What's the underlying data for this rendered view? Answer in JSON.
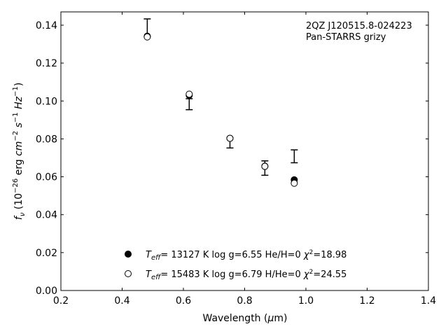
{
  "chart_data": {
    "type": "scatter",
    "title": "",
    "xlabel": "Wavelength (μm)",
    "ylabel": "f_ν (10^-26 erg cm^-2 s^-1 Hz^-1)",
    "xlim": [
      0.2,
      1.4
    ],
    "ylim": [
      0.0,
      0.147
    ],
    "xticks": [
      0.2,
      0.4,
      0.6,
      0.8,
      1.0,
      1.2,
      1.4
    ],
    "xtick_labels": [
      "0.2",
      "0.4",
      "0.6",
      "0.8",
      "1.0",
      "1.2",
      "1.4"
    ],
    "yticks": [
      0.0,
      0.02,
      0.04,
      0.06,
      0.08,
      0.1,
      0.12,
      0.14
    ],
    "ytick_labels": [
      "0.00",
      "0.02",
      "0.04",
      "0.06",
      "0.08",
      "0.10",
      "0.12",
      "0.14"
    ],
    "grid": false,
    "annotation": [
      "2QZ J120515.8-024223",
      "Pan-STARRS grizy"
    ],
    "observed": {
      "x": [
        0.482,
        0.619,
        0.752,
        0.866,
        0.962
      ],
      "y_high": [
        0.1433,
        0.1012,
        0.0806,
        0.0684,
        0.0742
      ],
      "y_low": [
        0.1338,
        0.0954,
        0.0752,
        0.0608,
        0.0674
      ]
    },
    "series": [
      {
        "legend": "T_eff= 13127 K  log g=6.55  He/H=0  χ²=18.98",
        "marker": "filled-circle",
        "x": [
          0.482,
          0.619,
          0.752,
          0.866,
          0.962
        ],
        "y": [
          0.1342,
          0.103,
          0.0803,
          0.0656,
          0.0584
        ]
      },
      {
        "legend": "T_eff= 15483 K  log g=6.79  H/He=0  χ²=24.55",
        "marker": "open-circle",
        "x": [
          0.482,
          0.619,
          0.752,
          0.866,
          0.962
        ],
        "y": [
          0.1338,
          0.1036,
          0.0803,
          0.0655,
          0.0566
        ]
      }
    ],
    "legend_position": "lower-center"
  }
}
